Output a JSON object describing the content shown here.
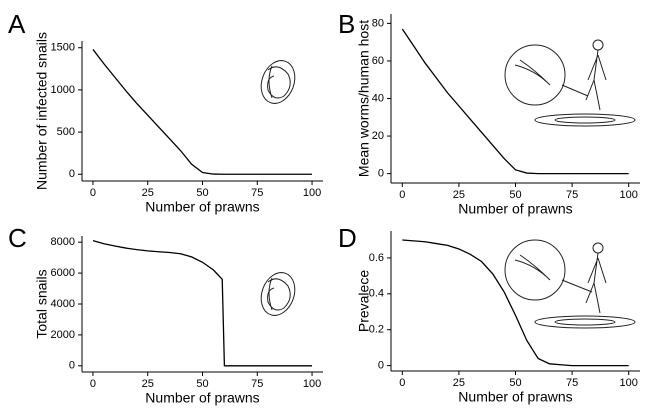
{
  "chart_data": [
    {
      "type": "line",
      "panel": "A",
      "xlabel": "Number of prawns",
      "ylabel": "Number of infected snails",
      "x": [
        0,
        5,
        10,
        15,
        20,
        25,
        30,
        35,
        40,
        45,
        50,
        55,
        60,
        65,
        70,
        75,
        80,
        85,
        90,
        95,
        100
      ],
      "series": [
        {
          "color": "#000000",
          "values": [
            1480,
            1310,
            1150,
            990,
            840,
            700,
            560,
            420,
            280,
            120,
            20,
            2,
            0,
            0,
            0,
            0,
            0,
            0,
            0,
            0,
            0
          ]
        }
      ],
      "xlim": [
        -5,
        105
      ],
      "ylim": [
        -80,
        1580
      ],
      "xticks": [
        0,
        25,
        50,
        75,
        100
      ],
      "yticks": [
        0,
        500,
        1000,
        1500
      ]
    },
    {
      "type": "line",
      "panel": "B",
      "xlabel": "Number of prawns",
      "ylabel": "Mean worms/human host",
      "x": [
        0,
        5,
        10,
        15,
        20,
        25,
        30,
        35,
        40,
        45,
        50,
        55,
        60,
        65,
        70,
        75,
        80,
        85,
        90,
        95,
        100
      ],
      "series": [
        {
          "color": "#000000",
          "values": [
            77,
            68,
            59,
            51,
            43,
            36,
            29,
            22,
            15,
            8,
            2,
            0.3,
            0,
            0,
            0,
            0,
            0,
            0,
            0,
            0,
            0
          ]
        }
      ],
      "xlim": [
        -5,
        105
      ],
      "ylim": [
        -5,
        85
      ],
      "xticks": [
        0,
        25,
        50,
        75,
        100
      ],
      "yticks": [
        0,
        20,
        40,
        60,
        80
      ]
    },
    {
      "type": "line",
      "panel": "C",
      "xlabel": "Number of prawns",
      "ylabel": "Total snails",
      "x": [
        0,
        5,
        10,
        15,
        20,
        25,
        30,
        35,
        40,
        45,
        50,
        55,
        59,
        60,
        65,
        70,
        75,
        80,
        85,
        90,
        95,
        100
      ],
      "series": [
        {
          "color": "#000000",
          "values": [
            8100,
            7900,
            7750,
            7620,
            7520,
            7440,
            7380,
            7330,
            7250,
            7050,
            6700,
            6200,
            5600,
            0,
            0,
            0,
            0,
            0,
            0,
            0,
            0,
            0
          ]
        }
      ],
      "xlim": [
        -5,
        105
      ],
      "ylim": [
        -400,
        8400
      ],
      "xticks": [
        0,
        25,
        50,
        75,
        100
      ],
      "yticks": [
        0,
        2000,
        4000,
        6000,
        8000
      ]
    },
    {
      "type": "line",
      "panel": "D",
      "xlabel": "Number of prawns",
      "ylabel": "Prevalece",
      "x": [
        0,
        5,
        10,
        15,
        20,
        25,
        30,
        35,
        40,
        45,
        50,
        55,
        60,
        65,
        70,
        75,
        80,
        85,
        90,
        95,
        100
      ],
      "series": [
        {
          "color": "#000000",
          "values": [
            0.7,
            0.695,
            0.69,
            0.68,
            0.67,
            0.65,
            0.62,
            0.58,
            0.51,
            0.41,
            0.28,
            0.14,
            0.04,
            0.01,
            0.005,
            0,
            0,
            0,
            0,
            0,
            0
          ]
        }
      ],
      "xlim": [
        -5,
        105
      ],
      "ylim": [
        -0.03,
        0.75
      ],
      "xticks": [
        0,
        25,
        50,
        75,
        100
      ],
      "yticks": [
        0,
        0.2,
        0.4,
        0.6
      ]
    }
  ]
}
